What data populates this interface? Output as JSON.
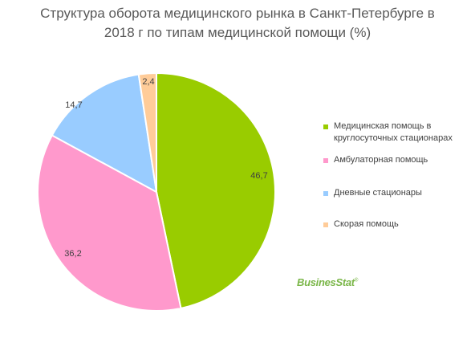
{
  "chart_data": {
    "type": "pie",
    "title_line1": "Структура оборота медицинского рынка в Санкт-Петербурге в",
    "title_line2": "2018 г по типам медицинской помощи (%)",
    "slices": [
      {
        "label": "Медицинская помощь в круглосуточных стационарах",
        "legend_line1": "Медицинская помощь в",
        "legend_line2": "круглосуточных стационарах",
        "value": 46.7,
        "value_label": "46,7",
        "color": "#99cc00"
      },
      {
        "label": "Амбулаторная помощь",
        "value": 36.2,
        "value_label": "36,2",
        "color": "#ff99cc"
      },
      {
        "label": "Дневные стационары",
        "value": 14.7,
        "value_label": "14,7",
        "color": "#99ccff"
      },
      {
        "label": "Скорая помощь",
        "value": 2.4,
        "value_label": "2,4",
        "color": "#ffcc99"
      }
    ],
    "legend_position": "right"
  },
  "logo": {
    "text": "BusinesStat",
    "mark": "®"
  }
}
